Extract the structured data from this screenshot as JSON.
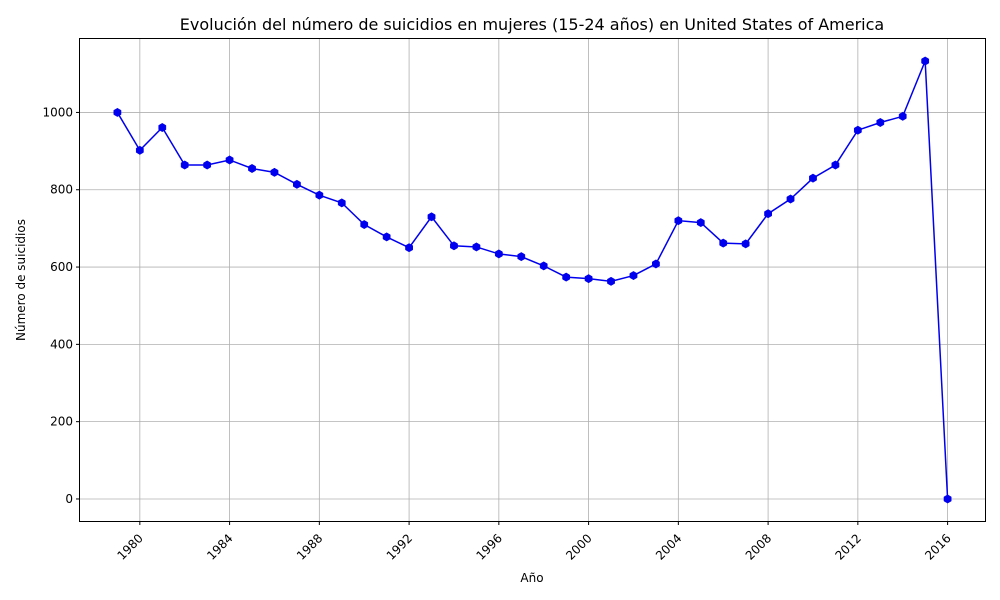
{
  "chart_data": {
    "type": "line",
    "title": "Evolución del número de suicidios en mujeres (15-24 años) en United States of America",
    "xlabel": "Año",
    "ylabel": "Número de suicidios",
    "x_ticks": [
      "1980",
      "1984",
      "1988",
      "1992",
      "1996",
      "2000",
      "2004",
      "2008",
      "2012",
      "2016"
    ],
    "y_ticks": [
      "0",
      "200",
      "400",
      "600",
      "800",
      "1000"
    ],
    "xlim": [
      "1977-05",
      "2017-09"
    ],
    "ylim": [
      -57,
      1190
    ],
    "grid": true,
    "line_color": "#0000ee",
    "x": [
      1979,
      1980,
      1981,
      1982,
      1983,
      1984,
      1985,
      1986,
      1987,
      1988,
      1989,
      1990,
      1991,
      1992,
      1993,
      1994,
      1995,
      1996,
      1997,
      1998,
      1999,
      2000,
      2001,
      2002,
      2003,
      2004,
      2005,
      2006,
      2007,
      2008,
      2009,
      2010,
      2011,
      2012,
      2013,
      2014,
      2015,
      2016
    ],
    "series": [
      {
        "values": [
          1000,
          902,
          961,
          864,
          864,
          877,
          855,
          845,
          814,
          786,
          766,
          710,
          678,
          650,
          730,
          655,
          652,
          634,
          627,
          603,
          574,
          570,
          563,
          578,
          608,
          720,
          715,
          662,
          660,
          738,
          776,
          830,
          864,
          954,
          974,
          990,
          1133,
          0
        ]
      }
    ]
  }
}
